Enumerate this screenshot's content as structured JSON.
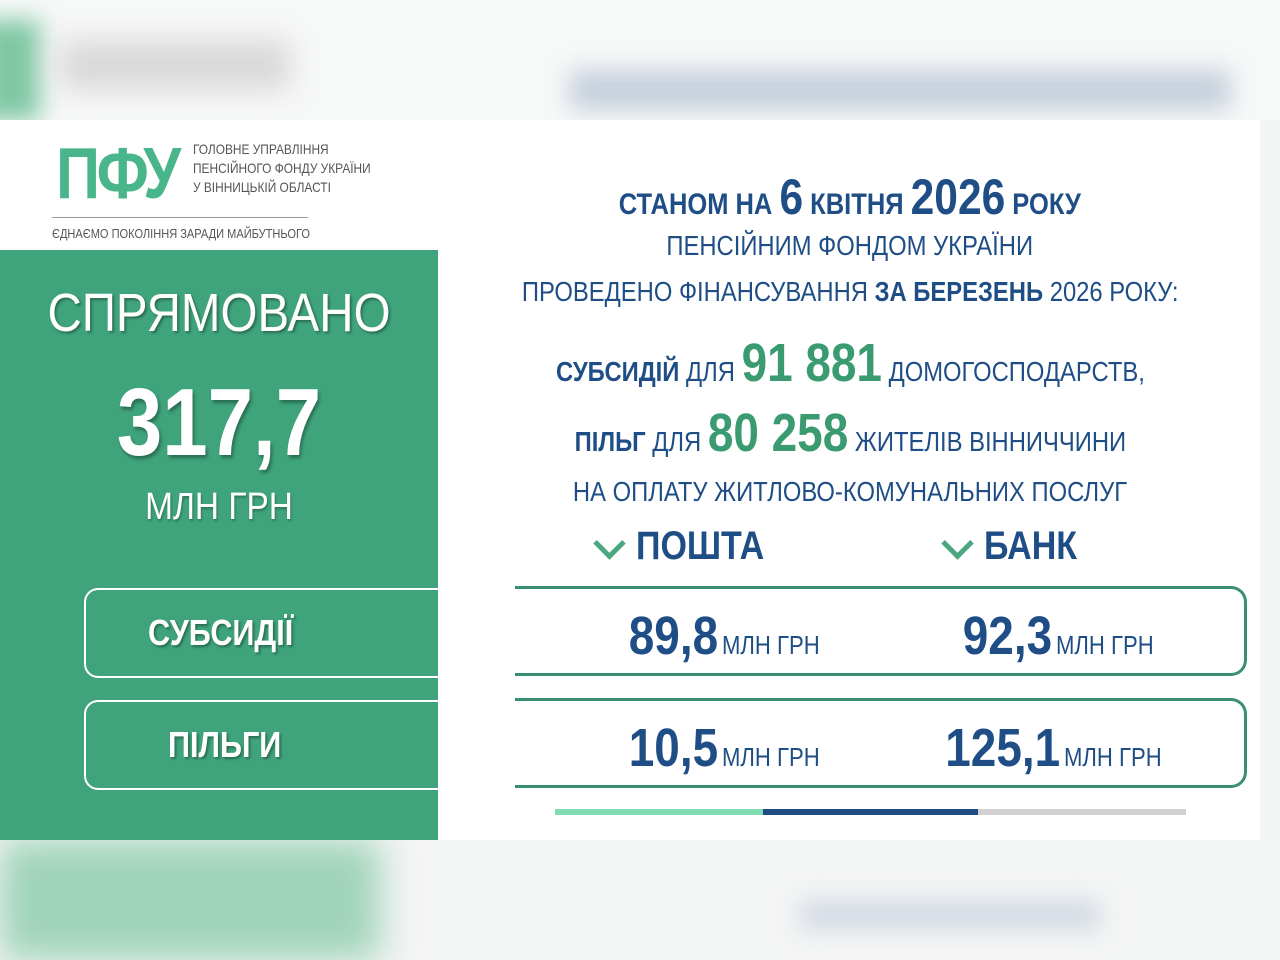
{
  "logo": {
    "mark": "ПФУ",
    "lines": [
      "ГОЛОВНЕ УПРАВЛІННЯ",
      "ПЕНСІЙНОГО ФОНДУ УКРАЇНИ",
      "У ВІННИЦЬКІЙ ОБЛАСТІ"
    ],
    "slogan": "ЄДНАЄМО ПОКОЛІННЯ ЗАРАДИ МАЙБУТНЬОГО"
  },
  "left": {
    "heading": "СПРЯМОВАНО",
    "total": "317,7",
    "unit": "МЛН ГРН",
    "pills": [
      "СУБСИДІЇ",
      "ПІЛЬГИ"
    ]
  },
  "headline": {
    "l1": [
      "СТАНОМ НА",
      "6",
      "КВІТНЯ",
      "2026",
      "РОКУ"
    ],
    "l2": "ПЕНСІЙНИМ ФОНДОМ УКРАЇНИ",
    "l3": [
      "ПРОВЕДЕНО ФІНАНСУВАННЯ",
      "ЗА БЕРЕЗЕНЬ",
      "2026 РОКУ:"
    ],
    "l4": [
      "СУБСИДІЙ",
      "ДЛЯ",
      "91 881",
      "ДОМОГОСПОДАРСТВ,"
    ],
    "l5": [
      "ПІЛЬГ",
      "ДЛЯ",
      "80 258",
      "ЖИТЕЛІВ ВІННИЧЧИНИ"
    ],
    "l6": "НА ОПЛАТУ ЖИТЛОВО-КОМУНАЛЬНИХ ПОСЛУГ"
  },
  "columns": [
    "ПОШТА",
    "БАНК"
  ],
  "rows": [
    {
      "name": "СУБСИДІЇ",
      "post": "89,8",
      "bank": "92,3",
      "unit": "МЛН ГРН"
    },
    {
      "name": "ПІЛЬГИ",
      "post": "10,5",
      "bank": "125,1",
      "unit": "МЛН ГРН"
    }
  ],
  "colors": {
    "green": "#3fa47c",
    "blue": "#1f4e86",
    "accent_light": "#7fdcb4"
  }
}
